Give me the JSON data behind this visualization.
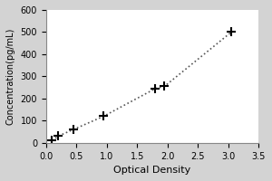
{
  "x_data": [
    0.1,
    0.2,
    0.45,
    0.95,
    1.8,
    1.95,
    3.05
  ],
  "y_data": [
    10,
    30,
    60,
    120,
    245,
    255,
    500
  ],
  "xlabel": "Optical Density",
  "ylabel": "Concentration(pg/mL)",
  "xlim": [
    0,
    3.5
  ],
  "ylim": [
    0,
    600
  ],
  "xticks": [
    0,
    0.5,
    1.0,
    1.5,
    2.0,
    2.5,
    3.0,
    3.5
  ],
  "yticks": [
    0,
    100,
    200,
    300,
    400,
    500,
    600
  ],
  "marker": "+",
  "marker_color": "#000000",
  "line_color": "#555555",
  "line_style": "dotted",
  "marker_size": 7,
  "bg_color": "#d3d3d3",
  "plot_bg_color": "#ffffff",
  "xlabel_fontsize": 8,
  "ylabel_fontsize": 7,
  "tick_fontsize": 7
}
